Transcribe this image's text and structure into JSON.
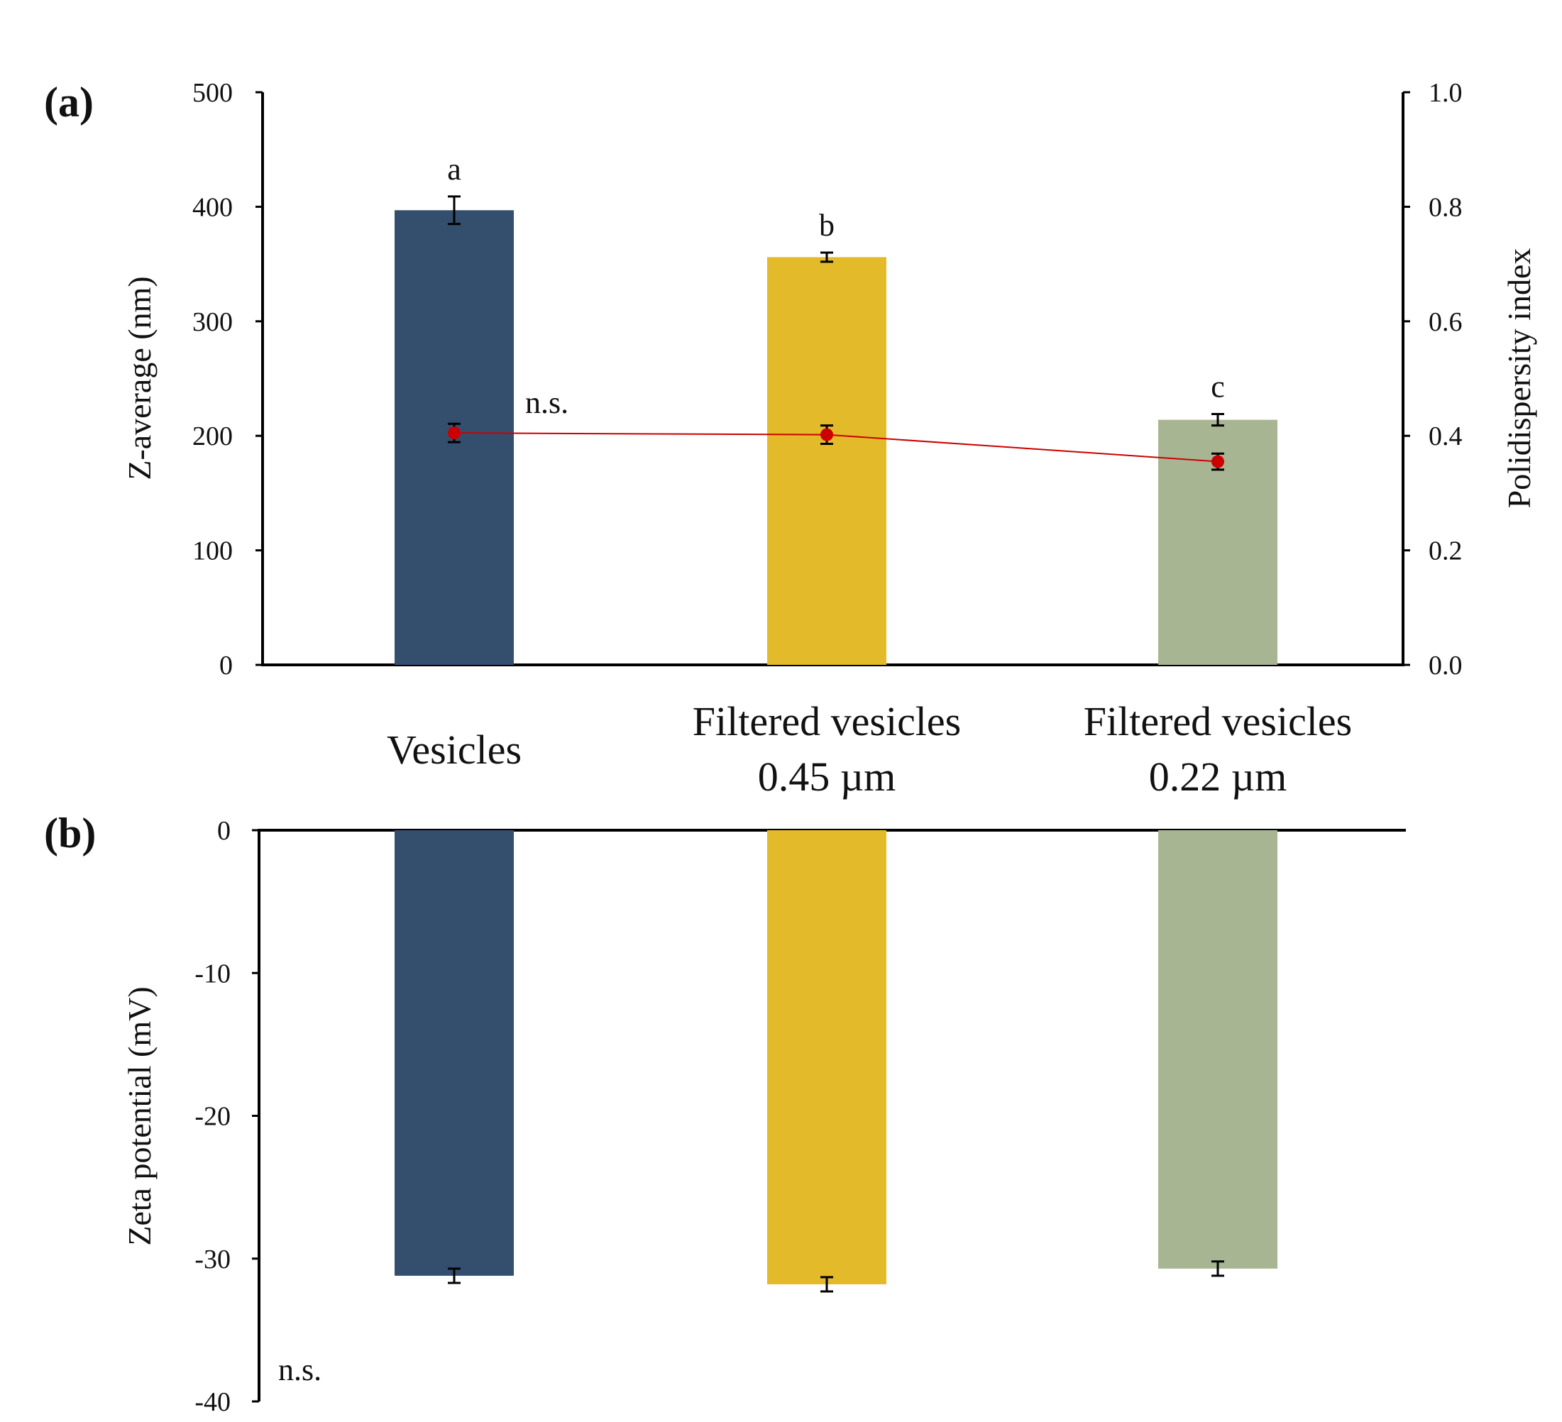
{
  "chart_data": [
    {
      "panel": "(a)",
      "type": "bar",
      "categories": [
        {
          "line1": "Vesicles",
          "line2": ""
        },
        {
          "line1": "Filtered  vesicles",
          "line2": "0.45 µm"
        },
        {
          "line1": "Filtered  vesicles",
          "line2": "0.22 µm"
        }
      ],
      "series": [
        {
          "name": "Z-average (nm)",
          "type": "bar",
          "axis": "left",
          "values": [
            397,
            356,
            214
          ],
          "errors": [
            12,
            4,
            5
          ],
          "colors": [
            "#344f6e",
            "#e3ba29",
            "#a7b592"
          ],
          "labels": [
            "a",
            "b",
            "c"
          ]
        },
        {
          "name": "Polidispersity index",
          "type": "line",
          "axis": "right",
          "values": [
            0.405,
            0.402,
            0.355
          ],
          "errors": [
            0.016,
            0.016,
            0.014
          ],
          "color": "#cc0000"
        }
      ],
      "annotation": "n.s.",
      "ylabel": "Z-average  (nm)",
      "y2label": "Polidispersity index",
      "ylim": [
        0,
        500
      ],
      "y2lim": [
        0.0,
        1.0
      ],
      "yticks": [
        "0",
        "100",
        "200",
        "300",
        "400",
        "500"
      ],
      "y2ticks": [
        "0.0",
        "0.2",
        "0.4",
        "0.6",
        "0.8",
        "1.0"
      ]
    },
    {
      "panel": "(b)",
      "type": "bar",
      "series": [
        {
          "name": "Zeta potential (mV)",
          "values": [
            -31.2,
            -31.8,
            -30.7
          ],
          "errors": [
            0.5,
            0.5,
            0.5
          ],
          "colors": [
            "#344f6e",
            "#e3ba29",
            "#a7b592"
          ]
        }
      ],
      "annotation": "n.s.",
      "ylabel": "Zeta potential (mV)",
      "ylim": [
        -40,
        0
      ],
      "yticks": [
        "0",
        "-10",
        "-20",
        "-30",
        "-40"
      ]
    }
  ]
}
